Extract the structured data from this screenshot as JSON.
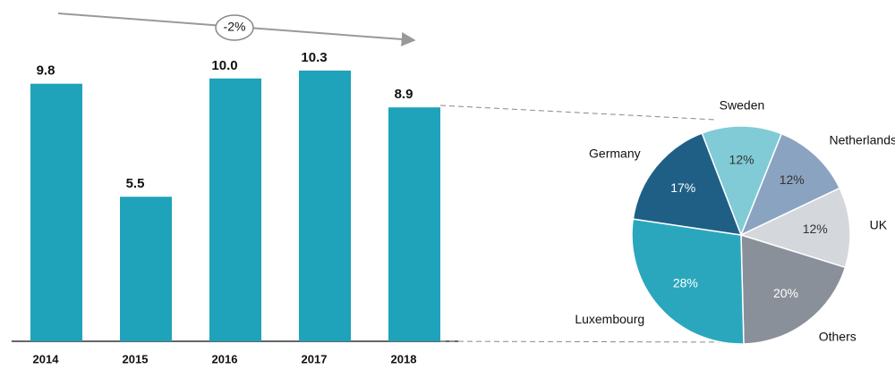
{
  "chart_data": [
    {
      "type": "bar",
      "categories": [
        "2014",
        "2015",
        "2016",
        "2017",
        "2018"
      ],
      "values": [
        9.8,
        5.5,
        10.0,
        10.3,
        8.9
      ],
      "value_labels": [
        "9.8",
        "5.5",
        "10.0",
        "10.3",
        "8.9"
      ],
      "color": "#1fa3ba",
      "annotation": "-2%"
    },
    {
      "type": "pie",
      "categories": [
        "Sweden",
        "Netherlands",
        "UK",
        "Others",
        "Luxembourg",
        "Germany"
      ],
      "values": [
        12,
        12,
        12,
        20,
        28,
        17
      ],
      "value_labels": [
        "12%",
        "12%",
        "12%",
        "20%",
        "28%",
        "17%"
      ],
      "colors": [
        "#80cbd6",
        "#8aa3c0",
        "#d4d7db",
        "#8a9099",
        "#2ba7bd",
        "#1f5f86"
      ],
      "label_colors": [
        "#333333",
        "#333333",
        "#333333",
        "#ffffff",
        "#ffffff",
        "#ffffff"
      ]
    }
  ]
}
